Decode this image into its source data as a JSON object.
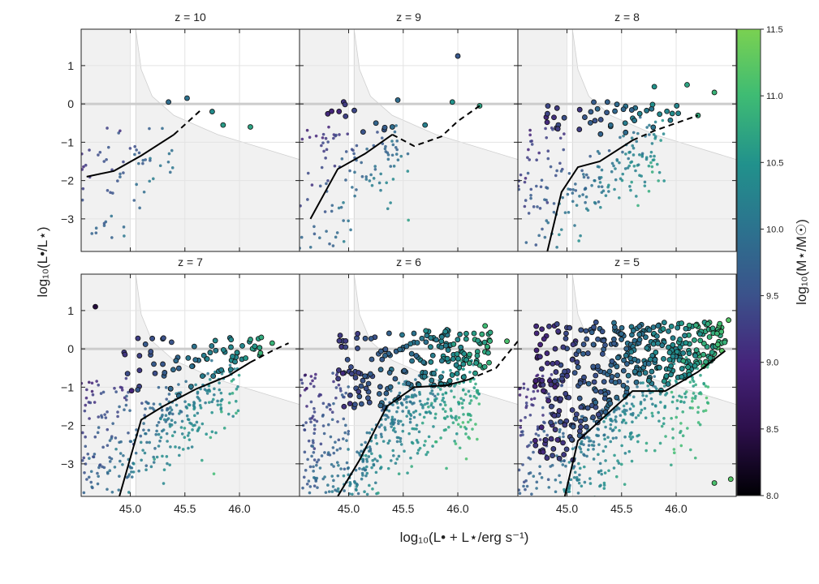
{
  "chart_data": {
    "type": "scatter",
    "xlabel": "log₁₀(L• + L⋆/erg s⁻¹)",
    "ylabel": "log₁₀(L•/L⋆)",
    "xlim": [
      44.55,
      46.55
    ],
    "ylim": [
      -3.85,
      1.95
    ],
    "x_ticks": [
      45.0,
      45.5,
      46.0
    ],
    "x_tick_labels": [
      "45.0",
      "45.5",
      "46.0"
    ],
    "y_ticks": [
      -3,
      -2,
      -1,
      0,
      1
    ],
    "y_tick_labels": [
      "−3",
      "−2",
      "−1",
      "0",
      "1"
    ],
    "grid": true,
    "colorbar": {
      "label": "log₁₀(M⋆/M☉)",
      "range": [
        8.0,
        11.5
      ],
      "ticks": [
        "8.0",
        "8.5",
        "9.0",
        "9.5",
        "10.0",
        "10.5",
        "11.0",
        "11.5"
      ],
      "colormap": "viridis"
    },
    "horizontal_reference_line_y": 0,
    "panels": [
      {
        "title": "z = 10",
        "shaded_region": {
          "vertical_boundary_x": 45.0,
          "curve": [
            [
              45.05,
              1.95
            ],
            [
              45.1,
              0.9
            ],
            [
              45.2,
              0.2
            ],
            [
              45.4,
              -0.3
            ],
            [
              45.8,
              -0.8
            ],
            [
              46.55,
              -1.45
            ]
          ]
        },
        "relation_solid": [
          [
            44.6,
            -1.9
          ],
          [
            44.85,
            -1.75
          ],
          [
            45.1,
            -1.35
          ],
          [
            45.4,
            -0.8
          ]
        ],
        "relation_dashed": [
          [
            45.4,
            -0.8
          ],
          [
            45.65,
            -0.15
          ]
        ],
        "bright_points": [
          [
            45.35,
            0.05,
            9.9
          ],
          [
            45.52,
            0.15,
            10.0
          ],
          [
            45.75,
            -0.2,
            10.4
          ],
          [
            45.85,
            -0.55,
            10.6
          ],
          [
            46.1,
            -0.6,
            10.7
          ]
        ],
        "n_faint": 60,
        "n_bright": 0,
        "faint_x": [
          44.55,
          45.4
        ],
        "bright_box": [
          [
            44.6,
            45.3
          ],
          [
            -0.9,
            0.1
          ]
        ]
      },
      {
        "title": "z = 9",
        "shaded_region": {
          "vertical_boundary_x": 45.0,
          "curve": [
            [
              45.05,
              1.95
            ],
            [
              45.1,
              0.9
            ],
            [
              45.2,
              0.2
            ],
            [
              45.4,
              -0.3
            ],
            [
              45.8,
              -0.8
            ],
            [
              46.55,
              -1.45
            ]
          ]
        },
        "relation_solid": [
          [
            44.65,
            -3.0
          ],
          [
            44.9,
            -1.7
          ],
          [
            45.15,
            -1.3
          ],
          [
            45.4,
            -0.8
          ]
        ],
        "relation_dashed": [
          [
            45.4,
            -0.8
          ],
          [
            45.6,
            -1.1
          ],
          [
            45.85,
            -0.85
          ],
          [
            46.0,
            -0.45
          ],
          [
            46.2,
            -0.05
          ]
        ],
        "bright_points": [
          [
            45.25,
            -0.5,
            9.8
          ],
          [
            45.4,
            -0.6,
            9.9
          ],
          [
            45.45,
            0.1,
            9.9
          ],
          [
            45.7,
            -0.55,
            10.2
          ],
          [
            45.95,
            0.05,
            10.5
          ],
          [
            46.0,
            1.25,
            9.6
          ],
          [
            46.2,
            -0.05,
            10.7
          ]
        ],
        "n_faint": 110,
        "n_bright": 10,
        "faint_x": [
          44.55,
          45.55
        ],
        "bright_box": [
          [
            44.8,
            45.45
          ],
          [
            -0.8,
            0.1
          ]
        ]
      },
      {
        "title": "z = 8",
        "shaded_region": {
          "vertical_boundary_x": 45.0,
          "curve": [
            [
              45.05,
              1.95
            ],
            [
              45.1,
              0.9
            ],
            [
              45.2,
              0.2
            ],
            [
              45.4,
              -0.3
            ],
            [
              45.8,
              -0.8
            ],
            [
              46.55,
              -1.45
            ]
          ]
        },
        "relation_solid": [
          [
            44.82,
            -3.85
          ],
          [
            44.95,
            -2.3
          ],
          [
            45.1,
            -1.65
          ],
          [
            45.3,
            -1.5
          ],
          [
            45.6,
            -0.95
          ]
        ],
        "relation_dashed": [
          [
            45.6,
            -0.95
          ],
          [
            45.8,
            -0.7
          ],
          [
            46.0,
            -0.5
          ],
          [
            46.2,
            -0.3
          ]
        ],
        "bright_points": [
          [
            45.8,
            0.45,
            10.5
          ],
          [
            46.1,
            0.5,
            10.7
          ],
          [
            46.35,
            0.3,
            10.9
          ],
          [
            46.2,
            -0.3,
            10.8
          ]
        ],
        "n_faint": 200,
        "n_bright": 45,
        "faint_x": [
          44.55,
          45.9
        ],
        "bright_box": [
          [
            44.8,
            46.1
          ],
          [
            -0.8,
            0.1
          ]
        ]
      },
      {
        "title": "z = 7",
        "shaded_region": {
          "vertical_boundary_x": 45.0,
          "curve": [
            [
              45.05,
              1.95
            ],
            [
              45.1,
              0.9
            ],
            [
              45.2,
              0.2
            ],
            [
              45.4,
              -0.3
            ],
            [
              45.8,
              -0.8
            ],
            [
              46.55,
              -1.45
            ]
          ]
        },
        "relation_solid": [
          [
            44.9,
            -3.85
          ],
          [
            45.1,
            -1.85
          ],
          [
            45.3,
            -1.5
          ],
          [
            45.6,
            -1.05
          ],
          [
            45.9,
            -0.7
          ],
          [
            46.1,
            -0.35
          ]
        ],
        "relation_dashed": [
          [
            46.1,
            -0.35
          ],
          [
            46.3,
            -0.05
          ],
          [
            46.45,
            0.15
          ]
        ],
        "bright_points": [
          [
            44.68,
            1.1,
            8.4
          ],
          [
            46.2,
            0.3,
            10.8
          ],
          [
            46.3,
            0.15,
            10.9
          ]
        ],
        "n_faint": 330,
        "n_bright": 70,
        "faint_x": [
          44.55,
          46.0
        ],
        "bright_box": [
          [
            44.9,
            46.2
          ],
          [
            -1.3,
            0.3
          ]
        ]
      },
      {
        "title": "z = 6",
        "shaded_region": {
          "vertical_boundary_x": 45.0,
          "curve": [
            [
              45.05,
              1.95
            ],
            [
              45.1,
              0.9
            ],
            [
              45.2,
              0.2
            ],
            [
              45.4,
              -0.3
            ],
            [
              45.8,
              -0.8
            ],
            [
              46.55,
              -1.45
            ]
          ]
        },
        "relation_solid": [
          [
            44.9,
            -3.85
          ],
          [
            45.1,
            -2.9
          ],
          [
            45.35,
            -1.5
          ],
          [
            45.6,
            -1.0
          ],
          [
            45.9,
            -0.95
          ],
          [
            46.1,
            -0.8
          ]
        ],
        "relation_dashed": [
          [
            46.1,
            -0.8
          ],
          [
            46.35,
            -0.5
          ],
          [
            46.55,
            0.2
          ]
        ],
        "bright_points": [
          [
            46.25,
            0.6,
            11.0
          ],
          [
            46.45,
            0.2,
            11.1
          ]
        ],
        "n_faint": 520,
        "n_bright": 190,
        "faint_x": [
          44.55,
          46.2
        ],
        "bright_box": [
          [
            44.9,
            46.3
          ],
          [
            -1.6,
            0.5
          ]
        ]
      },
      {
        "title": "z = 5",
        "shaded_region": {
          "vertical_boundary_x": 45.0,
          "curve": [
            [
              45.05,
              1.95
            ],
            [
              45.1,
              0.9
            ],
            [
              45.2,
              0.2
            ],
            [
              45.4,
              -0.3
            ],
            [
              45.8,
              -0.8
            ],
            [
              46.55,
              -1.45
            ]
          ]
        },
        "relation_solid": [
          [
            44.98,
            -3.85
          ],
          [
            45.1,
            -2.4
          ],
          [
            45.35,
            -1.75
          ],
          [
            45.6,
            -1.1
          ],
          [
            45.9,
            -1.1
          ],
          [
            46.2,
            -0.6
          ],
          [
            46.45,
            -0.05
          ]
        ],
        "relation_dashed": [],
        "bright_points": [
          [
            46.35,
            -3.5,
            11.1
          ],
          [
            46.5,
            -3.4,
            11.2
          ],
          [
            46.48,
            0.75,
            11.2
          ]
        ],
        "n_faint": 420,
        "n_bright": 430,
        "faint_x": [
          44.55,
          46.3
        ],
        "bright_box": [
          [
            44.7,
            46.45
          ],
          [
            -2.9,
            0.7
          ]
        ]
      }
    ]
  }
}
